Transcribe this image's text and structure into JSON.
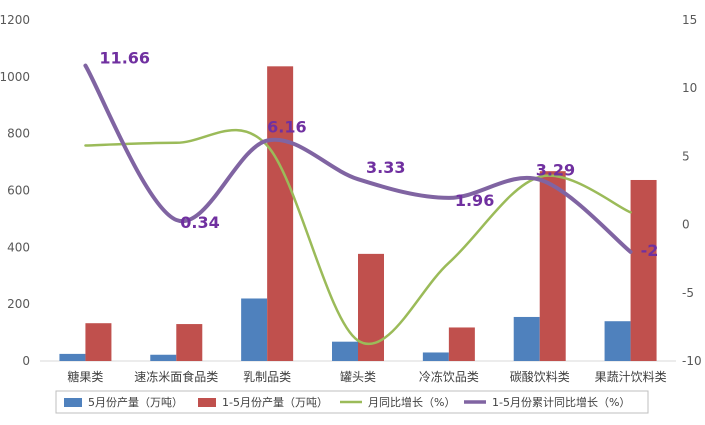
{
  "chart_data": {
    "type": "bar",
    "categories": [
      "糖果类",
      "速冻米面食品类",
      "乳制品类",
      "罐头类",
      "冷冻饮品类",
      "碳酸饮料类",
      "果蔬汁饮料类"
    ],
    "series": [
      {
        "name": "5月份产量（万吨）",
        "type": "bar",
        "axis": "left",
        "color": "#4f81bd",
        "values": [
          25,
          22,
          220,
          68,
          30,
          155,
          140
        ]
      },
      {
        "name": "1-5月份产量（万吨）",
        "type": "bar",
        "axis": "left",
        "color": "#c0504d",
        "values": [
          133,
          130,
          1037,
          377,
          118,
          668,
          637
        ]
      },
      {
        "name": "月同比增长（%）",
        "type": "line",
        "axis": "right",
        "color": "#9bbb59",
        "values": [
          5.8,
          6.0,
          5.8,
          -8.5,
          -2.8,
          3.5,
          0.9
        ]
      },
      {
        "name": "1-5月份累计同比增长（%）",
        "type": "line",
        "axis": "right",
        "color": "#8064a2",
        "values": [
          11.66,
          0.34,
          6.16,
          3.33,
          1.96,
          3.29,
          -2
        ],
        "labels": [
          "11.66",
          "0.34",
          "6.16",
          "3.33",
          "1.96",
          "3.29",
          "-2"
        ]
      }
    ],
    "y_left": {
      "min": 0,
      "max": 1200,
      "ticks": [
        "0",
        "200",
        "400",
        "600",
        "800",
        "1000",
        "1200"
      ]
    },
    "y_right": {
      "min": -10,
      "max": 15,
      "ticks": [
        "-10",
        "-5",
        "0",
        "5",
        "10",
        "15"
      ]
    },
    "grid": false,
    "legend": "bottom"
  }
}
